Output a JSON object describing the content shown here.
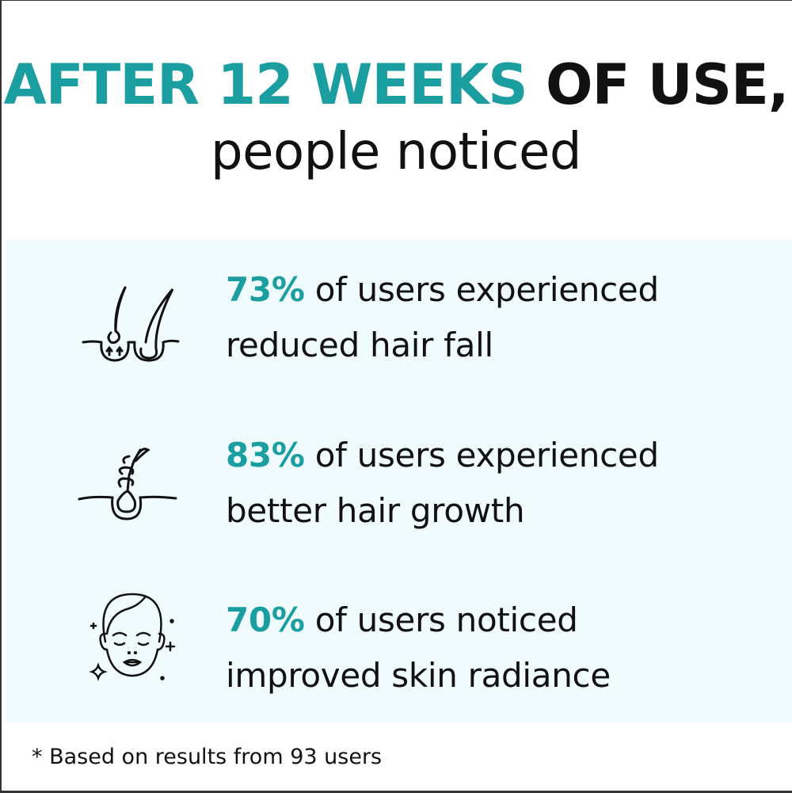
{
  "heading": {
    "accent": "AFTER 12 WEEKS",
    "rest": " OF USE,",
    "line2": "people noticed"
  },
  "colors": {
    "accent": "#1a9ea0",
    "panel": "#f0fbfd",
    "text": "#111111"
  },
  "stats": [
    {
      "icon": "hair-follicle-icon",
      "percent": "73%",
      "line1": " of users experienced",
      "line2": "reduced hair fall"
    },
    {
      "icon": "hair-growth-icon",
      "percent": "83%",
      "line1": " of users experienced",
      "line2": "better hair growth"
    },
    {
      "icon": "radiant-face-icon",
      "percent": "70%",
      "line1": " of users noticed",
      "line2": "improved skin radiance"
    }
  ],
  "footnote": "* Based on results from 93 users"
}
